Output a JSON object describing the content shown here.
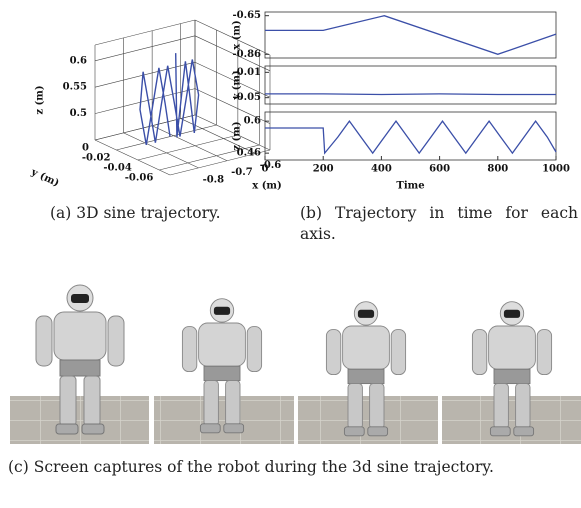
{
  "chart_data": [
    {
      "type": "line3d",
      "xlabel": "x (m)",
      "ylabel": "y (m)",
      "zlabel": "z (m)",
      "xlim": [
        -0.9,
        -0.55
      ],
      "ylim": [
        -0.07,
        0
      ],
      "zlim": [
        0.45,
        0.63
      ],
      "xticks": [
        -0.8,
        -0.7,
        -0.6
      ],
      "yticks": [
        0,
        -0.02,
        -0.04,
        -0.06
      ],
      "zticks": [
        0.5,
        0.55,
        0.6
      ],
      "x": [
        -0.73,
        -0.726,
        -0.711,
        -0.696,
        -0.68,
        -0.665,
        -0.65,
        -0.672,
        -0.693,
        -0.715,
        -0.736,
        -0.758,
        -0.78,
        -0.801,
        -0.822,
        -0.844,
        -0.855,
        -0.833,
        -0.811,
        -0.789,
        -0.767,
        -0.75
      ],
      "y": [
        -0.03,
        -0.03,
        -0.03,
        -0.03,
        -0.03,
        -0.03,
        -0.03,
        -0.03,
        -0.03,
        -0.03,
        -0.03,
        -0.03,
        -0.03,
        -0.03,
        -0.03,
        -0.03,
        -0.03,
        -0.03,
        -0.03,
        -0.03,
        -0.03,
        -0.03
      ],
      "z": [
        0.62,
        0.46,
        0.53,
        0.6,
        0.53,
        0.46,
        0.53,
        0.6,
        0.53,
        0.46,
        0.53,
        0.6,
        0.53,
        0.46,
        0.53,
        0.6,
        0.53,
        0.46,
        0.53,
        0.6,
        0.53,
        0.465
      ],
      "color": "#3b4fa8"
    },
    {
      "type": "line",
      "ylabel": "x (m)",
      "x": [
        0,
        200,
        410,
        800,
        1000
      ],
      "values": [
        -0.73,
        -0.73,
        -0.65,
        -0.86,
        -0.75
      ],
      "xlim": [
        0,
        1000
      ],
      "ylim": [
        -0.88,
        -0.63
      ],
      "yticks": [
        -0.86,
        -0.65
      ],
      "color": "#3b4fa8"
    },
    {
      "type": "line",
      "ylabel": "y (m)",
      "x": [
        0,
        200,
        400,
        600,
        800,
        1000
      ],
      "values": [
        -0.044,
        -0.044,
        -0.045,
        -0.044,
        -0.045,
        -0.045
      ],
      "xlim": [
        0,
        1000
      ],
      "ylim": [
        -0.06,
        0
      ],
      "yticks": [
        -0.05,
        -0.01
      ],
      "color": "#3b4fa8"
    },
    {
      "type": "line",
      "ylabel": "z (m)",
      "xlabel": "Time",
      "x": [
        0,
        200,
        205,
        250,
        290,
        330,
        370,
        410,
        450,
        490,
        530,
        570,
        610,
        650,
        690,
        730,
        770,
        810,
        850,
        890,
        930,
        970,
        1000
      ],
      "values": [
        0.57,
        0.57,
        0.46,
        0.53,
        0.6,
        0.53,
        0.46,
        0.53,
        0.6,
        0.53,
        0.46,
        0.53,
        0.6,
        0.53,
        0.46,
        0.53,
        0.6,
        0.53,
        0.46,
        0.53,
        0.6,
        0.53,
        0.465
      ],
      "xlim": [
        0,
        1000
      ],
      "ylim": [
        0.43,
        0.64
      ],
      "yticks": [
        0.46,
        0.6
      ],
      "xticks": [
        0,
        200,
        400,
        600,
        800,
        1000
      ],
      "color": "#3b4fa8"
    }
  ],
  "captions": {
    "a": "(a) 3D sine trajectory.",
    "b": "(b) Trajectory in time for each axis.",
    "c": "(c) Screen captures of the robot during the 3d sine trajectory."
  }
}
